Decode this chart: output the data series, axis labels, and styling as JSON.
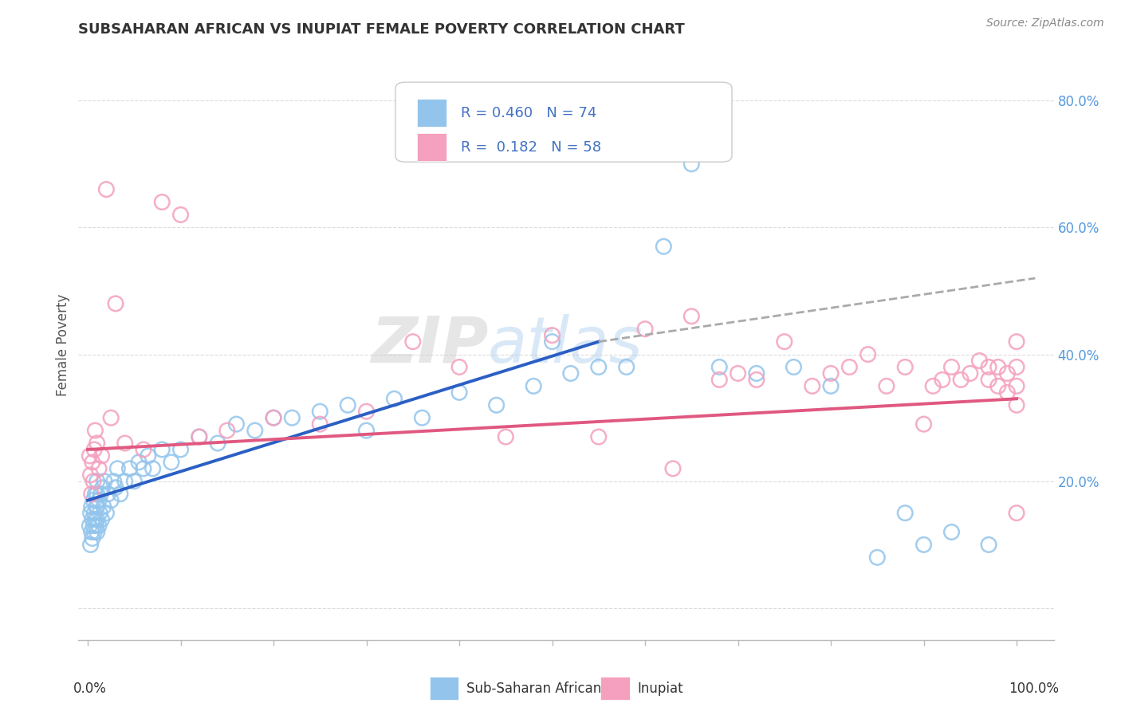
{
  "title": "SUBSAHARAN AFRICAN VS INUPIAT FEMALE POVERTY CORRELATION CHART",
  "source": "Source: ZipAtlas.com",
  "ylabel": "Female Poverty",
  "color_blue": "#93C5EC",
  "color_pink": "#F4A0BE",
  "color_blue_line": "#2B5FC4",
  "color_pink_line": "#E05880",
  "color_dashed": "#AAAAAA",
  "background_color": "#FFFFFF",
  "grid_color": "#CCCCCC",
  "watermark_zip": "#BBBBBB",
  "watermark_atlas": "#AACCEE",
  "blue_x": [
    0.002,
    0.003,
    0.003,
    0.004,
    0.004,
    0.005,
    0.005,
    0.006,
    0.006,
    0.007,
    0.007,
    0.008,
    0.008,
    0.009,
    0.009,
    0.01,
    0.01,
    0.01,
    0.01,
    0.01,
    0.012,
    0.012,
    0.013,
    0.014,
    0.015,
    0.016,
    0.017,
    0.018,
    0.02,
    0.022,
    0.025,
    0.028,
    0.03,
    0.032,
    0.035,
    0.04,
    0.045,
    0.05,
    0.055,
    0.06,
    0.065,
    0.07,
    0.08,
    0.09,
    0.1,
    0.12,
    0.14,
    0.16,
    0.18,
    0.2,
    0.22,
    0.25,
    0.28,
    0.3,
    0.33,
    0.36,
    0.4,
    0.44,
    0.48,
    0.5,
    0.52,
    0.55,
    0.58,
    0.62,
    0.65,
    0.68,
    0.72,
    0.76,
    0.8,
    0.85,
    0.88,
    0.9,
    0.93,
    0.97
  ],
  "blue_y": [
    0.13,
    0.1,
    0.15,
    0.12,
    0.16,
    0.11,
    0.14,
    0.13,
    0.17,
    0.12,
    0.15,
    0.14,
    0.18,
    0.13,
    0.16,
    0.12,
    0.14,
    0.16,
    0.18,
    0.2,
    0.13,
    0.17,
    0.15,
    0.18,
    0.14,
    0.19,
    0.16,
    0.2,
    0.15,
    0.18,
    0.17,
    0.2,
    0.19,
    0.22,
    0.18,
    0.2,
    0.22,
    0.2,
    0.23,
    0.22,
    0.24,
    0.22,
    0.25,
    0.23,
    0.25,
    0.27,
    0.26,
    0.29,
    0.28,
    0.3,
    0.3,
    0.31,
    0.32,
    0.28,
    0.33,
    0.3,
    0.34,
    0.32,
    0.35,
    0.42,
    0.37,
    0.38,
    0.38,
    0.57,
    0.7,
    0.38,
    0.37,
    0.38,
    0.35,
    0.08,
    0.15,
    0.1,
    0.12,
    0.1
  ],
  "pink_x": [
    0.002,
    0.003,
    0.004,
    0.005,
    0.006,
    0.007,
    0.008,
    0.01,
    0.012,
    0.015,
    0.02,
    0.025,
    0.03,
    0.04,
    0.06,
    0.08,
    0.1,
    0.12,
    0.15,
    0.2,
    0.25,
    0.3,
    0.35,
    0.4,
    0.45,
    0.5,
    0.55,
    0.6,
    0.63,
    0.65,
    0.68,
    0.7,
    0.72,
    0.75,
    0.78,
    0.8,
    0.82,
    0.84,
    0.86,
    0.88,
    0.9,
    0.91,
    0.92,
    0.93,
    0.94,
    0.95,
    0.96,
    0.97,
    0.97,
    0.98,
    0.98,
    0.99,
    0.99,
    1.0,
    1.0,
    1.0,
    1.0,
    1.0
  ],
  "pink_y": [
    0.24,
    0.21,
    0.18,
    0.23,
    0.2,
    0.25,
    0.28,
    0.26,
    0.22,
    0.24,
    0.66,
    0.3,
    0.48,
    0.26,
    0.25,
    0.64,
    0.62,
    0.27,
    0.28,
    0.3,
    0.29,
    0.31,
    0.42,
    0.38,
    0.27,
    0.43,
    0.27,
    0.44,
    0.22,
    0.46,
    0.36,
    0.37,
    0.36,
    0.42,
    0.35,
    0.37,
    0.38,
    0.4,
    0.35,
    0.38,
    0.29,
    0.35,
    0.36,
    0.38,
    0.36,
    0.37,
    0.39,
    0.36,
    0.38,
    0.35,
    0.38,
    0.34,
    0.37,
    0.32,
    0.35,
    0.38,
    0.42,
    0.15
  ],
  "blue_line_x": [
    0.0,
    0.55
  ],
  "blue_line_y": [
    0.17,
    0.42
  ],
  "dashed_line_x": [
    0.55,
    1.02
  ],
  "dashed_line_y": [
    0.42,
    0.52
  ],
  "pink_line_x": [
    0.0,
    1.0
  ],
  "pink_line_y": [
    0.25,
    0.33
  ],
  "ylim": [
    -0.05,
    0.88
  ],
  "xlim": [
    -0.01,
    1.04
  ]
}
